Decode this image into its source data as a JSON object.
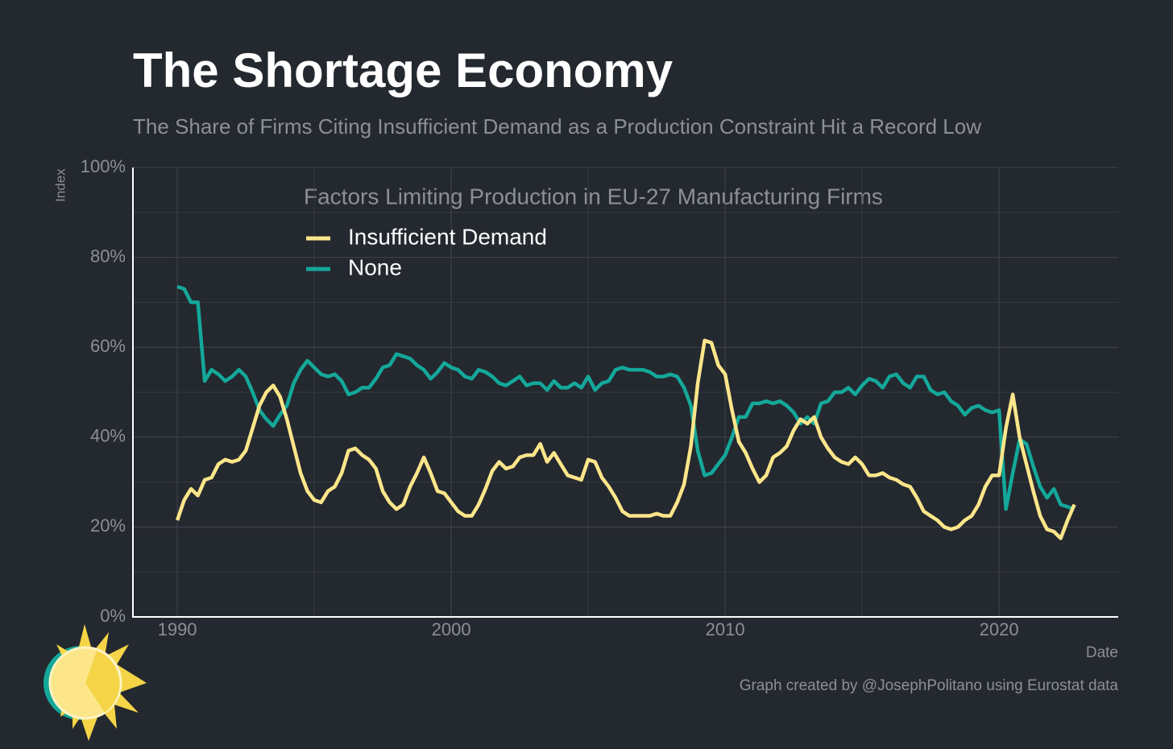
{
  "chart_data": {
    "type": "line",
    "title": "The Shortage Economy",
    "subtitle": "The Share of Firms Citing Insufficient Demand as a Production Constraint Hit a Record Low",
    "legend_title": "Factors Limiting Production in EU-27 Manufacturing Firms",
    "ylabel": "Index",
    "xlabel": "Date",
    "caption": "Graph created by @JosephPolitano using Eurostat data",
    "x": [
      1990,
      1990.25,
      1990.5,
      1990.75,
      1991,
      1991.25,
      1991.5,
      1991.75,
      1992,
      1992.25,
      1992.5,
      1992.75,
      1993,
      1993.25,
      1993.5,
      1993.75,
      1994,
      1994.25,
      1994.5,
      1994.75,
      1995,
      1995.25,
      1995.5,
      1995.75,
      1996,
      1996.25,
      1996.5,
      1996.75,
      1997,
      1997.25,
      1997.5,
      1997.75,
      1998,
      1998.25,
      1998.5,
      1998.75,
      1999,
      1999.25,
      1999.5,
      1999.75,
      2000,
      2000.25,
      2000.5,
      2000.75,
      2001,
      2001.25,
      2001.5,
      2001.75,
      2002,
      2002.25,
      2002.5,
      2002.75,
      2003,
      2003.25,
      2003.5,
      2003.75,
      2004,
      2004.25,
      2004.5,
      2004.75,
      2005,
      2005.25,
      2005.5,
      2005.75,
      2006,
      2006.25,
      2006.5,
      2006.75,
      2007,
      2007.25,
      2007.5,
      2007.75,
      2008,
      2008.25,
      2008.5,
      2008.75,
      2009,
      2009.25,
      2009.5,
      2009.75,
      2010,
      2010.25,
      2010.5,
      2010.75,
      2011,
      2011.25,
      2011.5,
      2011.75,
      2012,
      2012.25,
      2012.5,
      2012.75,
      2013,
      2013.25,
      2013.5,
      2013.75,
      2014,
      2014.25,
      2014.5,
      2014.75,
      2015,
      2015.25,
      2015.5,
      2015.75,
      2016,
      2016.25,
      2016.5,
      2016.75,
      2017,
      2017.25,
      2017.5,
      2017.75,
      2018,
      2018.25,
      2018.5,
      2018.75,
      2019,
      2019.25,
      2019.5,
      2019.75,
      2020,
      2020.25,
      2020.5,
      2020.75,
      2021,
      2021.25,
      2021.5,
      2021.75,
      2022,
      2022.25,
      2022.5,
      2022.75
    ],
    "series": [
      {
        "name": "Insufficient Demand",
        "color": "#fde68a",
        "values": [
          21.5,
          26,
          28.5,
          27,
          30.5,
          31,
          34,
          35,
          34.5,
          35,
          37,
          42,
          47,
          50,
          51.5,
          49,
          44,
          38,
          32,
          28,
          26,
          25.5,
          28,
          29,
          32,
          37,
          37.5,
          36,
          35,
          33,
          28,
          25.5,
          24,
          25,
          29,
          32,
          35.5,
          32,
          28,
          27.5,
          25.5,
          23.5,
          22.5,
          22.5,
          25,
          28.5,
          32.5,
          34.5,
          33,
          33.5,
          35.5,
          36,
          36,
          38.5,
          34.5,
          36.5,
          34,
          31.5,
          31,
          30.5,
          35,
          34.5,
          31,
          29,
          26.5,
          23.5,
          22.5,
          22.5,
          22.5,
          22.5,
          23,
          22.5,
          22.5,
          25.5,
          29.5,
          38,
          52,
          61.5,
          61,
          56,
          54,
          46,
          39,
          36.5,
          33,
          30,
          31.5,
          35.5,
          36.5,
          38,
          41.5,
          44,
          43,
          44.5,
          40,
          37.5,
          35.5,
          34.5,
          34,
          35.5,
          34,
          31.5,
          31.5,
          32,
          31,
          30.5,
          29.5,
          29,
          26.5,
          23.5,
          22.5,
          21.5,
          20,
          19.5,
          20,
          21.5,
          22.5,
          25,
          29,
          31.5,
          31.5,
          42,
          49.5,
          40,
          34,
          28,
          22.5,
          19.5,
          19,
          17.5,
          21.5,
          25
        ]
      },
      {
        "name": "None",
        "color": "#14a89a",
        "values": [
          73.5,
          73,
          70,
          70,
          52.5,
          55,
          54,
          52.5,
          53.5,
          55,
          53.5,
          50,
          46,
          44,
          42.5,
          45,
          47,
          52,
          55,
          57,
          55.5,
          54,
          53.5,
          54,
          52.5,
          49.5,
          50,
          51,
          51,
          53,
          55.5,
          56,
          58.5,
          58,
          57.5,
          56,
          55,
          53,
          54.5,
          56.5,
          55.5,
          55,
          53.5,
          53,
          55,
          54.5,
          53.5,
          52,
          51.5,
          52.5,
          53.5,
          51.5,
          52,
          52,
          50.5,
          52.5,
          51,
          51,
          52,
          51,
          53.5,
          50.5,
          52,
          52.5,
          55,
          55.5,
          55,
          55,
          55,
          54.5,
          53.5,
          53.5,
          54,
          53.5,
          51,
          47,
          37,
          31.5,
          32,
          34,
          36,
          40,
          44.5,
          44.5,
          47.5,
          47.5,
          48,
          47.5,
          48,
          47,
          45.5,
          43,
          44.5,
          43,
          47.5,
          48,
          50,
          50,
          51,
          49.5,
          51.5,
          53,
          52.5,
          51,
          53.5,
          54,
          52,
          51,
          53.5,
          53.5,
          50.5,
          49.5,
          50,
          48,
          47,
          45,
          46.5,
          47,
          46,
          45.5,
          46,
          24,
          32,
          39.5,
          38.5,
          33.5,
          29,
          26.5,
          28.5,
          25,
          24.5,
          24
        ]
      }
    ],
    "xlim": [
      1988.38,
      2024.35
    ],
    "ylim": [
      0,
      100
    ],
    "xticks": [
      1990,
      2000,
      2010,
      2020
    ],
    "yticks": [
      {
        "value": 0,
        "label": "0%"
      },
      {
        "value": 20,
        "label": "20%"
      },
      {
        "value": 40,
        "label": "40%"
      },
      {
        "value": 60,
        "label": "60%"
      },
      {
        "value": 80,
        "label": "80%"
      },
      {
        "value": 100,
        "label": "100%"
      }
    ],
    "grid": true
  }
}
